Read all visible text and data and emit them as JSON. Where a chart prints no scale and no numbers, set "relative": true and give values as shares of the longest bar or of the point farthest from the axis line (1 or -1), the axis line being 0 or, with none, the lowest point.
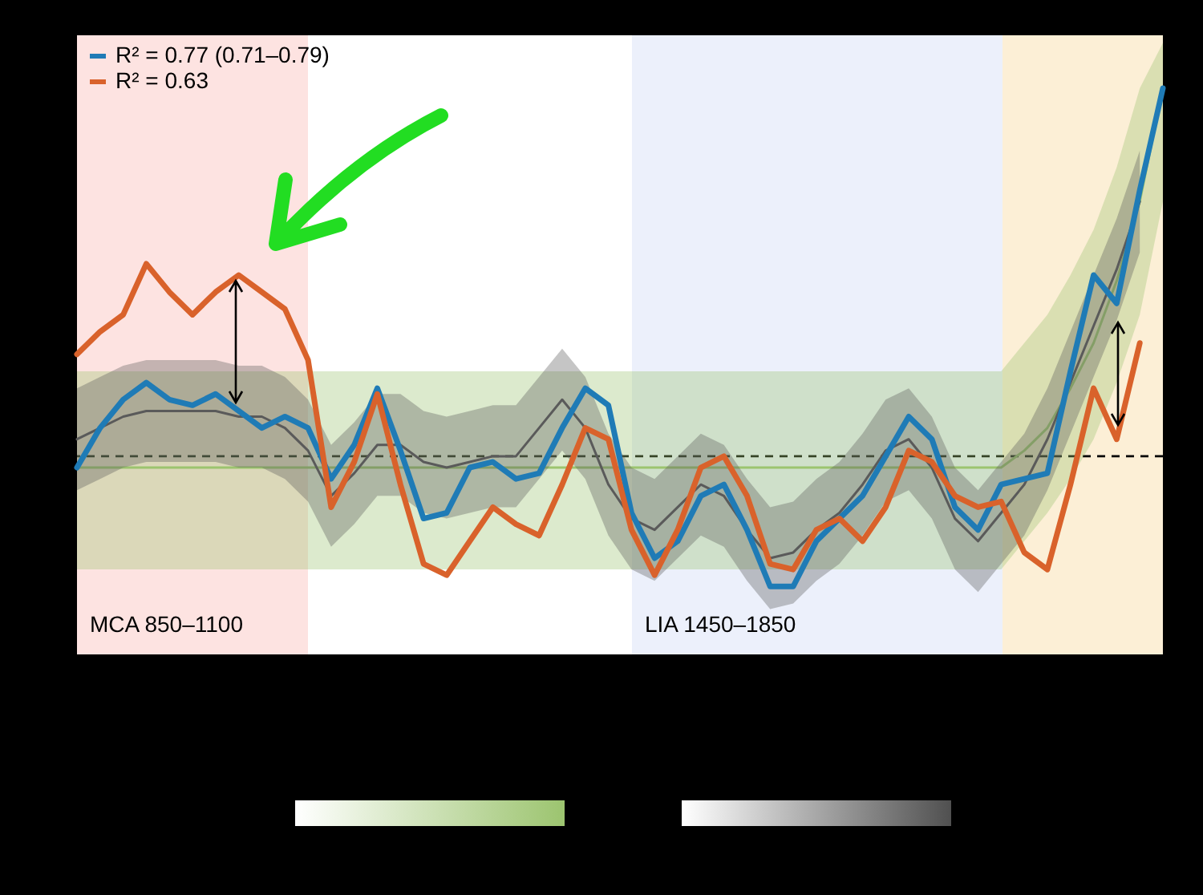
{
  "chart_data": {
    "type": "line",
    "relative": true,
    "legend": "top left",
    "grid": false,
    "marker": "none",
    "categories": [
      null,
      null,
      null,
      null,
      null,
      null,
      null,
      null,
      null,
      null,
      null,
      null,
      null,
      null,
      null,
      null,
      null,
      null,
      null,
      null,
      null,
      null,
      null,
      null,
      null,
      null,
      null,
      null,
      null,
      null,
      null,
      null,
      null,
      null,
      null,
      null,
      null,
      null,
      null,
      null,
      null,
      null,
      null,
      null,
      null,
      null,
      null,
      null
    ],
    "series": [
      {
        "color": "#9cc46f",
        "values": [
          0.33,
          0.33,
          0.33,
          0.33,
          0.33,
          0.33,
          0.33,
          0.33,
          0.33,
          0.33,
          0.33,
          0.33,
          0.33,
          0.33,
          0.33,
          0.33,
          0.33,
          0.33,
          0.33,
          0.33,
          0.33,
          0.33,
          0.33,
          0.33,
          0.33,
          0.33,
          0.33,
          0.33,
          0.33,
          0.33,
          0.33,
          0.33,
          0.33,
          0.33,
          0.33,
          0.33,
          0.33,
          0.33,
          0.33,
          0.33,
          0.33,
          0.36,
          0.4,
          0.47,
          0.55,
          0.66,
          0.8,
          1.0
        ],
        "lower": [
          0.15,
          0.15,
          0.15,
          0.15,
          0.15,
          0.15,
          0.15,
          0.15,
          0.15,
          0.15,
          0.15,
          0.15,
          0.15,
          0.15,
          0.15,
          0.15,
          0.15,
          0.15,
          0.15,
          0.15,
          0.15,
          0.15,
          0.15,
          0.15,
          0.15,
          0.15,
          0.15,
          0.15,
          0.15,
          0.15,
          0.15,
          0.15,
          0.15,
          0.15,
          0.15,
          0.15,
          0.15,
          0.15,
          0.15,
          0.15,
          0.15,
          0.2,
          0.25,
          0.31,
          0.38,
          0.48,
          0.6,
          0.8
        ],
        "upper": [
          0.5,
          0.5,
          0.5,
          0.5,
          0.5,
          0.5,
          0.5,
          0.5,
          0.5,
          0.5,
          0.5,
          0.5,
          0.5,
          0.5,
          0.5,
          0.5,
          0.5,
          0.5,
          0.5,
          0.5,
          0.5,
          0.5,
          0.5,
          0.5,
          0.5,
          0.5,
          0.5,
          0.5,
          0.5,
          0.5,
          0.5,
          0.5,
          0.5,
          0.5,
          0.5,
          0.5,
          0.5,
          0.5,
          0.5,
          0.5,
          0.5,
          0.55,
          0.6,
          0.67,
          0.75,
          0.86,
          1.0,
          1.08
        ]
      },
      {
        "color": "#5a5a5a",
        "values": [
          0.38,
          0.4,
          0.42,
          0.43,
          0.43,
          0.43,
          0.43,
          0.42,
          0.42,
          0.4,
          0.36,
          0.28,
          0.32,
          0.37,
          0.37,
          0.34,
          0.33,
          0.34,
          0.35,
          0.35,
          0.4,
          0.45,
          0.4,
          0.3,
          0.24,
          0.22,
          0.26,
          0.3,
          0.28,
          0.22,
          0.17,
          0.18,
          0.22,
          0.25,
          0.3,
          0.36,
          0.38,
          0.33,
          0.24,
          0.2,
          0.25,
          0.3,
          0.38,
          0.48,
          0.58,
          0.68,
          0.8,
          null
        ],
        "lower": [
          0.29,
          0.31,
          0.33,
          0.34,
          0.34,
          0.34,
          0.34,
          0.33,
          0.33,
          0.31,
          0.27,
          0.19,
          0.23,
          0.28,
          0.28,
          0.25,
          0.24,
          0.25,
          0.26,
          0.26,
          0.31,
          0.36,
          0.31,
          0.21,
          0.15,
          0.13,
          0.17,
          0.21,
          0.19,
          0.13,
          0.08,
          0.09,
          0.13,
          0.16,
          0.21,
          0.27,
          0.29,
          0.24,
          0.15,
          0.11,
          0.16,
          0.21,
          0.29,
          0.39,
          0.49,
          0.59,
          0.71,
          null
        ],
        "upper": [
          0.47,
          0.49,
          0.51,
          0.52,
          0.52,
          0.52,
          0.52,
          0.51,
          0.51,
          0.49,
          0.45,
          0.37,
          0.41,
          0.46,
          0.46,
          0.43,
          0.42,
          0.43,
          0.44,
          0.44,
          0.49,
          0.54,
          0.49,
          0.39,
          0.33,
          0.31,
          0.35,
          0.39,
          0.37,
          0.31,
          0.26,
          0.27,
          0.31,
          0.34,
          0.39,
          0.45,
          0.47,
          0.42,
          0.33,
          0.29,
          0.34,
          0.39,
          0.47,
          0.57,
          0.67,
          0.77,
          0.89,
          null
        ]
      },
      {
        "name": "R² = 0.77 (0.71–0.79)",
        "color": "#1f7bb6",
        "values": [
          0.33,
          0.4,
          0.45,
          0.48,
          0.45,
          0.44,
          0.46,
          0.43,
          0.4,
          0.42,
          0.4,
          0.31,
          0.37,
          0.47,
          0.36,
          0.24,
          0.25,
          0.33,
          0.34,
          0.31,
          0.32,
          0.4,
          0.47,
          0.44,
          0.25,
          0.17,
          0.2,
          0.28,
          0.3,
          0.22,
          0.12,
          0.12,
          0.2,
          0.24,
          0.28,
          0.35,
          0.42,
          0.38,
          0.26,
          0.22,
          0.3,
          0.31,
          0.32,
          0.5,
          0.67,
          0.62,
          0.82,
          1.0
        ]
      },
      {
        "name": "R² = 0.63",
        "color": "#d9622b",
        "values": [
          0.53,
          0.57,
          0.6,
          0.69,
          0.64,
          0.6,
          0.64,
          0.67,
          0.64,
          0.61,
          0.52,
          0.26,
          0.34,
          0.46,
          0.3,
          0.16,
          0.14,
          0.2,
          0.26,
          0.23,
          0.21,
          0.3,
          0.4,
          0.38,
          0.22,
          0.14,
          0.22,
          0.33,
          0.35,
          0.28,
          0.16,
          0.15,
          0.22,
          0.24,
          0.2,
          0.26,
          0.36,
          0.34,
          0.28,
          0.26,
          0.27,
          0.18,
          0.15,
          0.3,
          0.47,
          0.38,
          0.55,
          null
        ]
      }
    ],
    "ref_lines": [
      {
        "axis": "y",
        "value": 0.35,
        "color": "#000000",
        "line_style": "dashed"
      }
    ],
    "annotations": [
      "MCA 850–1100",
      "LIA 1450–1850"
    ]
  }
}
